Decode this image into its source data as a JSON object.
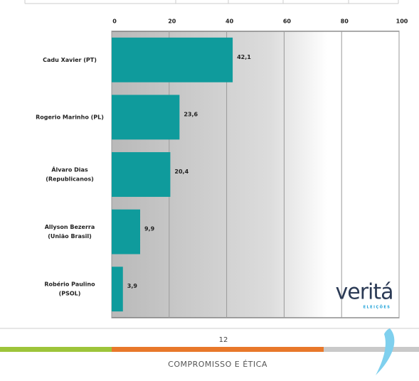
{
  "chart_data": {
    "type": "bar",
    "orientation": "horizontal",
    "categories": [
      [
        "Cadu Xavier (PT)"
      ],
      [
        "Rogerio Marinho (PL)"
      ],
      [
        "Álvaro Dias",
        "(Republicanos)"
      ],
      [
        "Allyson Bezerra",
        "(União Brasil)"
      ],
      [
        "Robério Paulino",
        "(PSOL)"
      ]
    ],
    "values": [
      42.1,
      23.6,
      20.4,
      9.9,
      3.9
    ],
    "value_labels": [
      "42,1",
      "23,6",
      "20,4",
      "9,9",
      "3,9"
    ],
    "color": "#0f9b9c",
    "xlim": [
      0,
      100
    ],
    "xticks": [
      0,
      20,
      40,
      60,
      80,
      100
    ],
    "grid": true
  },
  "logo": {
    "name": "veritá",
    "subtitle": "ELEIÇÕES"
  },
  "footer": {
    "page_number": "12",
    "text": "COMPROMISSO E ÉTICA"
  }
}
